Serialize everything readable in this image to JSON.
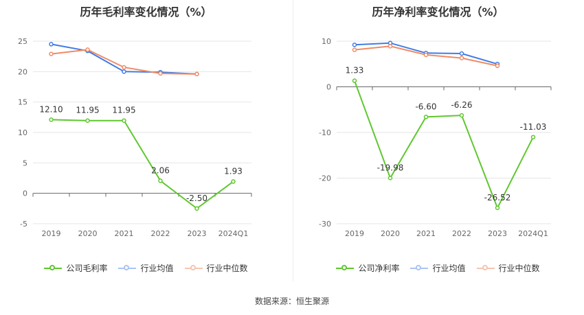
{
  "source": "数据来源：恒生聚源",
  "legend_line_color": "#7cb342",
  "chart_data": [
    {
      "type": "line",
      "title": "历年毛利率变化情况（%）",
      "categories": [
        "2019",
        "2020",
        "2021",
        "2022",
        "2023",
        "2024Q1"
      ],
      "ylim": [
        -5,
        25
      ],
      "yticks": [
        -5,
        0,
        5,
        10,
        15,
        20,
        25
      ],
      "grid": true,
      "legend_position": "bottom",
      "series": [
        {
          "name": "公司毛利率",
          "color": "#5ec72e",
          "values": [
            12.1,
            11.95,
            11.95,
            2.06,
            -2.5,
            1.93
          ],
          "labels": [
            "12.10",
            "11.95",
            "11.95",
            "2.06",
            "-2.50",
            "1.93"
          ]
        },
        {
          "name": "行业均值",
          "color": "#3f7be6",
          "values": [
            24.5,
            23.4,
            20.0,
            19.9,
            19.6,
            null
          ]
        },
        {
          "name": "行业中位数",
          "color": "#f08a63",
          "values": [
            22.9,
            23.6,
            20.7,
            19.7,
            19.6,
            null
          ]
        }
      ]
    },
    {
      "type": "line",
      "title": "历年净利率变化情况（%）",
      "categories": [
        "2019",
        "2020",
        "2021",
        "2022",
        "2023",
        "2024Q1"
      ],
      "ylim": [
        -30,
        10
      ],
      "yticks": [
        -30,
        -20,
        -10,
        0,
        10
      ],
      "grid": true,
      "legend_position": "bottom",
      "series": [
        {
          "name": "公司净利率",
          "color": "#5ec72e",
          "values": [
            1.33,
            -19.98,
            -6.6,
            -6.26,
            -26.52,
            -11.03
          ],
          "labels": [
            "1.33",
            "-19.98",
            "-6.60",
            "-6.26",
            "-26.52",
            "-11.03"
          ]
        },
        {
          "name": "行业均值",
          "color": "#3f7be6",
          "values": [
            9.2,
            9.6,
            7.4,
            7.3,
            5.0,
            null
          ]
        },
        {
          "name": "行业中位数",
          "color": "#f08a63",
          "values": [
            8.1,
            8.9,
            7.0,
            6.3,
            4.6,
            null
          ]
        }
      ]
    }
  ]
}
